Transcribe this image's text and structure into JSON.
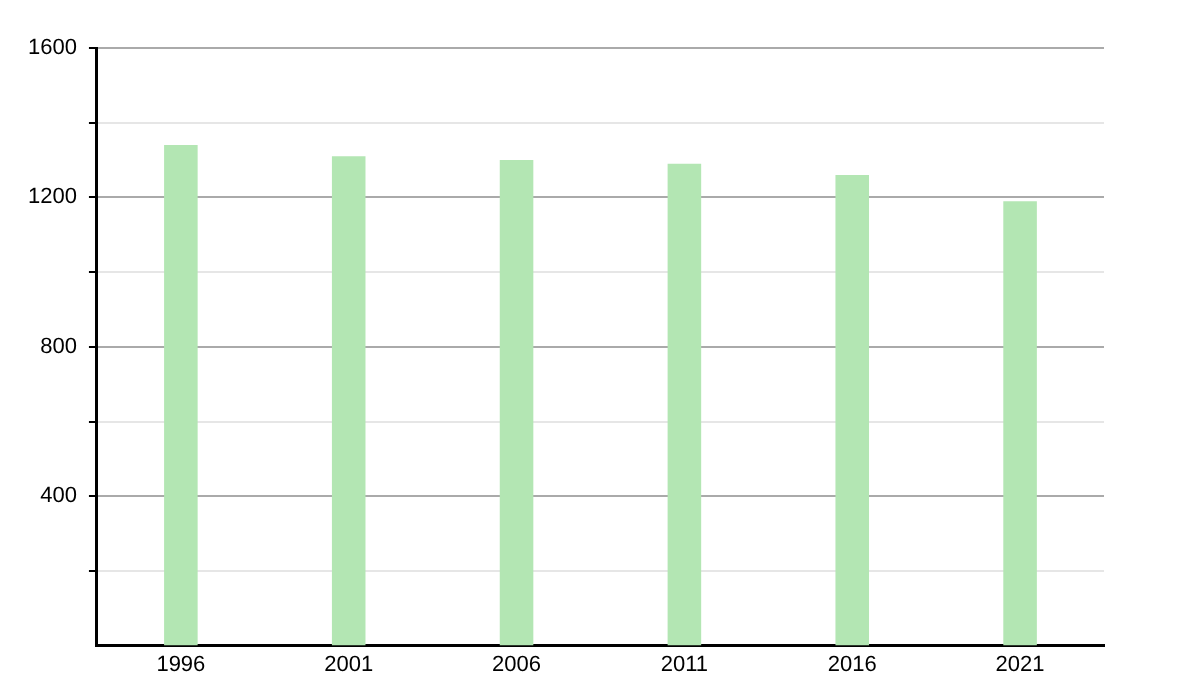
{
  "chart_data": {
    "type": "bar",
    "categories": [
      "1996",
      "2001",
      "2006",
      "2011",
      "2016",
      "2021"
    ],
    "values": [
      1340,
      1310,
      1300,
      1290,
      1260,
      1190
    ],
    "color": "#b3e6b3",
    "ylim": [
      0,
      1600
    ],
    "yticks": [
      {
        "value": 200,
        "label": null
      },
      400,
      {
        "value": 600,
        "label": null
      },
      800,
      {
        "value": 1000,
        "label": null
      },
      1200,
      {
        "value": 1400,
        "label": null
      },
      1600
    ],
    "grid": "y"
  }
}
